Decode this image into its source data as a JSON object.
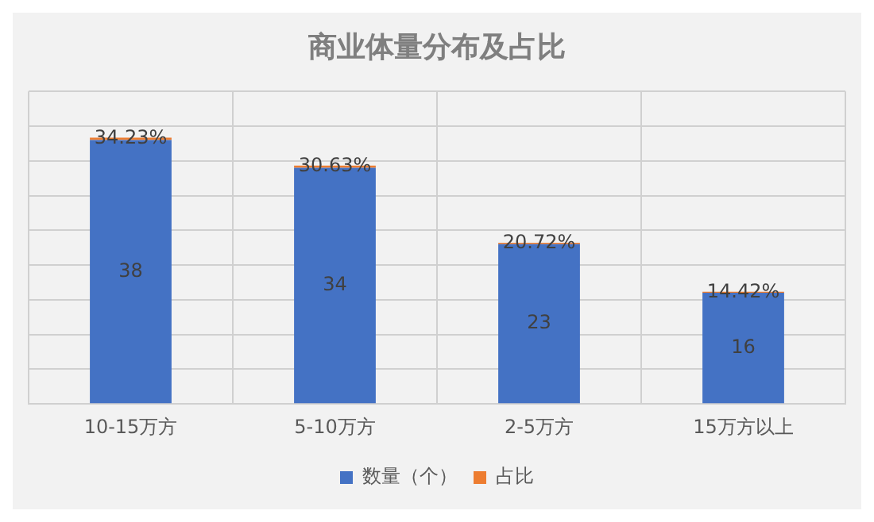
{
  "chart_data": {
    "type": "bar",
    "title": "商业体量分布及占比",
    "categories": [
      "10-15万方",
      "5-10万方",
      "2-5万方",
      "15万方以上"
    ],
    "stacked": true,
    "series": [
      {
        "name": "数量（个）",
        "color": "#4472c4",
        "values": [
          38,
          34,
          23,
          16
        ],
        "value_labels": [
          "38",
          "34",
          "23",
          "16"
        ]
      },
      {
        "name": "占比",
        "color": "#ed7d31",
        "values": [
          0.3423,
          0.3063,
          0.2072,
          0.1442
        ],
        "value_labels": [
          "34.23%",
          "30.63%",
          "20.72%",
          "14.42%"
        ]
      }
    ],
    "ylim": [
      0,
      45
    ],
    "yticks": [
      {
        "value": 0,
        "label": null
      },
      {
        "value": 5,
        "label": null
      },
      {
        "value": 10,
        "label": null
      },
      {
        "value": 15,
        "label": null
      },
      {
        "value": 20,
        "label": null
      },
      {
        "value": 25,
        "label": null
      },
      {
        "value": 30,
        "label": null
      },
      {
        "value": 35,
        "label": null
      },
      {
        "value": 40,
        "label": null
      },
      {
        "value": 45,
        "label": null
      }
    ],
    "tick_labels": "x",
    "grid": true,
    "legend": "bottom"
  }
}
